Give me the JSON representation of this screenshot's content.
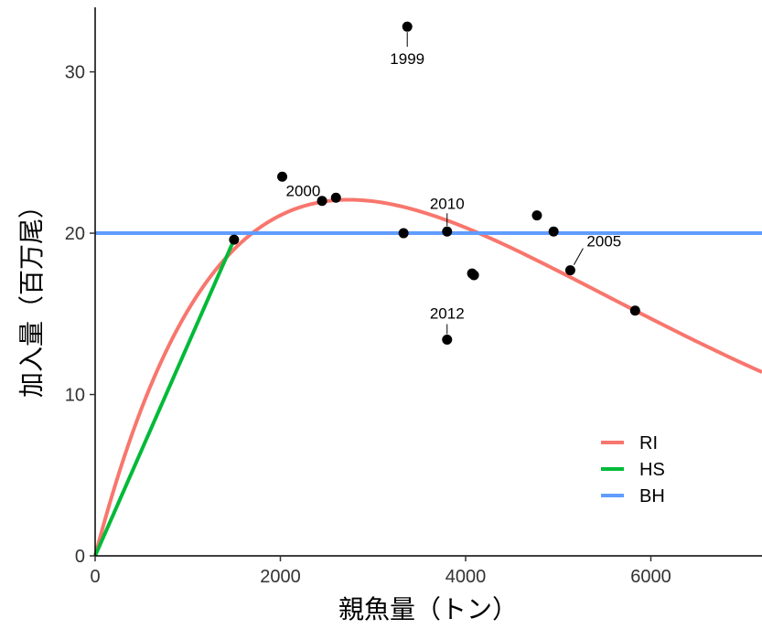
{
  "chart_data": {
    "type": "scatter",
    "xlabel": "親魚量（トン）",
    "ylabel": "加入量（百万尾）",
    "xlim": [
      0,
      7200
    ],
    "ylim": [
      0,
      34
    ],
    "x_ticks": [
      0,
      2000,
      4000,
      6000
    ],
    "y_ticks": [
      0,
      10,
      20,
      30
    ],
    "x_tick_labels": [
      "0",
      "2000",
      "4000",
      "6000"
    ],
    "y_tick_labels": [
      "0",
      "10",
      "20",
      "30"
    ],
    "grid": false,
    "legend_position": "bottom-right",
    "points": [
      {
        "x": 3370,
        "y": 32.8,
        "label": "1999"
      },
      {
        "x": 2020,
        "y": 23.5,
        "label": "2000"
      },
      {
        "x": 2450,
        "y": 22.0,
        "label": ""
      },
      {
        "x": 2600,
        "y": 22.2,
        "label": ""
      },
      {
        "x": 3330,
        "y": 20.0,
        "label": ""
      },
      {
        "x": 3800,
        "y": 20.1,
        "label": "2010"
      },
      {
        "x": 3800,
        "y": 13.4,
        "label": "2012"
      },
      {
        "x": 4070,
        "y": 17.5,
        "label": ""
      },
      {
        "x": 4090,
        "y": 17.4,
        "label": ""
      },
      {
        "x": 4770,
        "y": 21.1,
        "label": ""
      },
      {
        "x": 4950,
        "y": 20.1,
        "label": ""
      },
      {
        "x": 5130,
        "y": 17.7,
        "label": "2005"
      },
      {
        "x": 5830,
        "y": 15.2,
        "label": ""
      },
      {
        "x": 1500,
        "y": 19.6,
        "label": ""
      }
    ],
    "series": [
      {
        "name": "RI",
        "color": "#F8766D",
        "model": "ricker",
        "a": 0.0219,
        "b": 0.000365,
        "x_range": [
          0,
          7200
        ]
      },
      {
        "name": "HS",
        "color": "#00BA38",
        "model": "hockey-stick",
        "x": [
          0,
          1500,
          1500
        ],
        "y": [
          0,
          19.6,
          19.6
        ]
      },
      {
        "name": "BH",
        "color": "#619CFF",
        "model": "constant",
        "y": 20.0,
        "x_range": [
          0,
          7200
        ]
      }
    ]
  }
}
